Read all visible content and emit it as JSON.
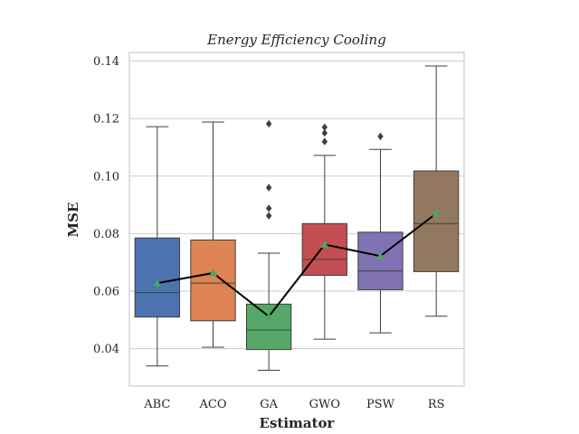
{
  "chart_data": {
    "type": "box",
    "title": "Energy Efficiency Cooling",
    "xlabel": "Estimator",
    "ylabel": "MSE",
    "ylim": [
      0.027,
      0.143
    ],
    "yticks": [
      0.04,
      0.06,
      0.08,
      0.1,
      0.12,
      0.14
    ],
    "ytick_labels": [
      "0.04",
      "0.06",
      "0.08",
      "0.10",
      "0.12",
      "0.14"
    ],
    "grid": true,
    "categories": [
      "ABC",
      "ACO",
      "GA",
      "GWO",
      "PSW",
      "RS"
    ],
    "colors": [
      "#4c72b0",
      "#dd8452",
      "#55a868",
      "#c44e52",
      "#8172b3",
      "#937860"
    ],
    "boxes": [
      {
        "label": "ABC",
        "whisker_low": 0.034,
        "q1": 0.051,
        "median": 0.0595,
        "q3": 0.0785,
        "whisker_high": 0.1172,
        "mean": 0.0628,
        "outliers": []
      },
      {
        "label": "ACO",
        "whisker_low": 0.0405,
        "q1": 0.0497,
        "median": 0.0628,
        "q3": 0.0778,
        "whisker_high": 0.1188,
        "mean": 0.0663,
        "outliers": []
      },
      {
        "label": "GA",
        "whisker_low": 0.0325,
        "q1": 0.0397,
        "median": 0.0465,
        "q3": 0.0555,
        "whisker_high": 0.0732,
        "mean": 0.0512,
        "outliers": [
          0.0862,
          0.0888,
          0.096,
          0.1182
        ]
      },
      {
        "label": "GWO",
        "whisker_low": 0.0433,
        "q1": 0.0655,
        "median": 0.071,
        "q3": 0.0835,
        "whisker_high": 0.1072,
        "mean": 0.0762,
        "outliers": [
          0.112,
          0.115,
          0.117
        ]
      },
      {
        "label": "PSW",
        "whisker_low": 0.0455,
        "q1": 0.0605,
        "median": 0.067,
        "q3": 0.0805,
        "whisker_high": 0.1093,
        "mean": 0.0722,
        "outliers": [
          0.1138
        ]
      },
      {
        "label": "RS",
        "whisker_low": 0.0513,
        "q1": 0.0668,
        "median": 0.0835,
        "q3": 0.1018,
        "whisker_high": 0.1383,
        "mean": 0.087,
        "outliers": []
      }
    ],
    "mean_line_color": "#000000",
    "mean_marker_color": "#4aa564",
    "box_edge_color": "#3f3f3f"
  }
}
